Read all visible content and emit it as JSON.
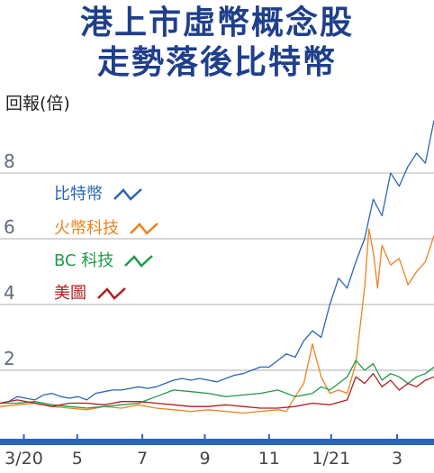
{
  "title_line1": "港上市虛幣概念股",
  "title_line2": "走勢落後比特幣",
  "colors": {
    "title": "#1f3f8c",
    "grid": "#bdbdbd",
    "axis_bar": "#2a66b7",
    "tick_text": "#444444",
    "ytick_text": "#5f6b7a"
  },
  "chart_data": {
    "type": "line",
    "ylabel": "回報(倍)",
    "y_ticks": [
      2,
      4,
      6,
      8
    ],
    "ylim": [
      0,
      9.7
    ],
    "x_ticks": [
      "3/20",
      "5",
      "7",
      "9",
      "11",
      "1/21",
      "3"
    ],
    "xlim": [
      0,
      1
    ],
    "x_tick_positions": [
      0.055,
      0.178,
      0.328,
      0.472,
      0.62,
      0.763,
      0.915
    ],
    "grid": true,
    "legend_position": "top-left",
    "series": [
      {
        "name": "比特幣",
        "color": "#2a66b7",
        "x": [
          0.0,
          0.02,
          0.04,
          0.06,
          0.08,
          0.1,
          0.12,
          0.14,
          0.16,
          0.18,
          0.2,
          0.22,
          0.24,
          0.26,
          0.28,
          0.3,
          0.32,
          0.34,
          0.36,
          0.38,
          0.4,
          0.42,
          0.44,
          0.46,
          0.48,
          0.5,
          0.52,
          0.54,
          0.56,
          0.58,
          0.6,
          0.62,
          0.64,
          0.66,
          0.68,
          0.7,
          0.72,
          0.74,
          0.76,
          0.78,
          0.8,
          0.82,
          0.84,
          0.86,
          0.88,
          0.9,
          0.92,
          0.94,
          0.96,
          0.98,
          1.0
        ],
        "values": [
          1.0,
          1.05,
          1.2,
          1.15,
          1.1,
          1.25,
          1.3,
          1.2,
          1.15,
          1.2,
          1.1,
          1.3,
          1.35,
          1.4,
          1.4,
          1.45,
          1.5,
          1.45,
          1.5,
          1.6,
          1.7,
          1.75,
          1.7,
          1.75,
          1.7,
          1.65,
          1.75,
          1.85,
          1.9,
          2.0,
          2.1,
          2.1,
          2.3,
          2.5,
          2.4,
          2.9,
          3.2,
          3.0,
          4.0,
          4.8,
          4.5,
          5.3,
          6.0,
          7.2,
          6.7,
          8.0,
          7.6,
          8.2,
          8.6,
          8.3,
          9.6
        ]
      },
      {
        "name": "火幣科技",
        "color": "#f0821e",
        "x": [
          0.0,
          0.04,
          0.08,
          0.12,
          0.16,
          0.2,
          0.24,
          0.28,
          0.32,
          0.36,
          0.4,
          0.44,
          0.48,
          0.52,
          0.56,
          0.6,
          0.64,
          0.66,
          0.68,
          0.7,
          0.72,
          0.74,
          0.76,
          0.78,
          0.8,
          0.82,
          0.84,
          0.85,
          0.86,
          0.87,
          0.88,
          0.9,
          0.92,
          0.94,
          0.96,
          0.98,
          1.0
        ],
        "values": [
          0.9,
          0.95,
          1.0,
          0.9,
          0.85,
          0.8,
          0.9,
          0.85,
          0.95,
          0.85,
          0.8,
          0.75,
          0.8,
          0.75,
          0.7,
          0.75,
          0.8,
          0.75,
          1.2,
          1.6,
          2.8,
          1.8,
          1.3,
          1.4,
          1.3,
          2.2,
          4.5,
          6.3,
          5.6,
          4.5,
          5.8,
          5.2,
          5.4,
          4.6,
          5.0,
          5.3,
          6.1
        ]
      },
      {
        "name": "BC科技",
        "color": "#1f9a4a",
        "x": [
          0.0,
          0.04,
          0.08,
          0.12,
          0.16,
          0.2,
          0.24,
          0.28,
          0.32,
          0.36,
          0.4,
          0.44,
          0.48,
          0.52,
          0.56,
          0.6,
          0.64,
          0.68,
          0.72,
          0.74,
          0.76,
          0.78,
          0.8,
          0.82,
          0.84,
          0.86,
          0.88,
          0.9,
          0.92,
          0.94,
          0.96,
          0.98,
          1.0
        ],
        "values": [
          1.0,
          1.0,
          1.05,
          0.95,
          0.9,
          0.85,
          0.9,
          0.95,
          1.0,
          1.2,
          1.4,
          1.35,
          1.3,
          1.2,
          1.25,
          1.3,
          1.4,
          1.2,
          1.3,
          1.5,
          1.4,
          1.6,
          1.8,
          2.3,
          2.0,
          2.2,
          1.7,
          1.9,
          1.8,
          1.6,
          1.8,
          1.9,
          2.1
        ]
      },
      {
        "name": "美圖",
        "color": "#b01e1e",
        "x": [
          0.0,
          0.04,
          0.08,
          0.12,
          0.16,
          0.2,
          0.24,
          0.28,
          0.32,
          0.36,
          0.4,
          0.44,
          0.48,
          0.52,
          0.56,
          0.6,
          0.64,
          0.68,
          0.72,
          0.76,
          0.8,
          0.82,
          0.84,
          0.86,
          0.88,
          0.9,
          0.92,
          0.94,
          0.96,
          0.98,
          1.0
        ],
        "values": [
          1.0,
          1.1,
          1.0,
          0.9,
          1.0,
          1.0,
          0.95,
          1.05,
          1.05,
          1.0,
          0.95,
          0.9,
          0.9,
          0.95,
          0.9,
          0.85,
          0.85,
          0.9,
          1.0,
          0.95,
          1.1,
          1.8,
          1.6,
          1.9,
          1.5,
          1.7,
          1.4,
          1.6,
          1.5,
          1.7,
          1.8
        ]
      }
    ]
  },
  "legend": {
    "items": [
      {
        "label": "比特幣",
        "color": "#2a66b7"
      },
      {
        "label": "火幣科技",
        "color": "#f0821e"
      },
      {
        "label": "BC 科技",
        "color": "#1f9a4a"
      },
      {
        "label": "美圖",
        "color": "#b01e1e"
      }
    ]
  }
}
